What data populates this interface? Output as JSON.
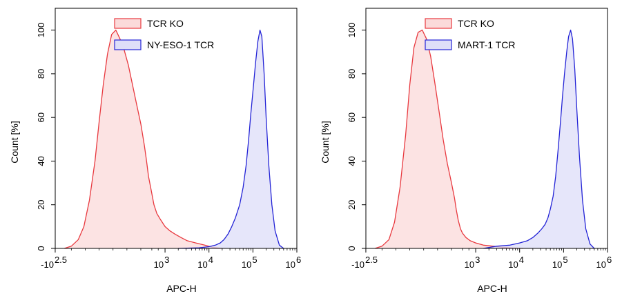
{
  "colors": {
    "ko_stroke": "#e8393f",
    "ko_fill": "#fbdada",
    "tcr_stroke": "#2323d6",
    "tcr_fill": "#dedef8",
    "axis": "#000000"
  },
  "chart_data": [
    {
      "type": "area",
      "xlabel": "APC-H",
      "ylabel": "Count [%]",
      "xscale": "biexponential (log above 10^2.5)",
      "xlim": [
        -316,
        1000000
      ],
      "ylim": [
        0,
        110
      ],
      "x_tick_labels": [
        {
          "base": "-10",
          "exp": "2.5"
        },
        {
          "base": "10",
          "exp": "3"
        },
        {
          "base": "10",
          "exp": "4"
        },
        {
          "base": "10",
          "exp": "5"
        },
        {
          "base": "10",
          "exp": "6"
        }
      ],
      "y_ticks": [
        "0",
        "20",
        "40",
        "60",
        "80",
        "100"
      ],
      "legend_position": "top-right",
      "series": [
        {
          "name": "TCR KO",
          "color": "ko",
          "x": [
            -250,
            -200,
            -150,
            -110,
            -70,
            -30,
            0,
            30,
            60,
            90,
            120,
            150,
            180,
            210,
            240,
            270,
            300,
            340,
            380,
            420,
            480,
            560,
            650,
            800,
            1000,
            1300,
            1700,
            2300,
            3200,
            5000,
            8000,
            12000,
            20000
          ],
          "values": [
            0,
            1,
            4,
            10,
            22,
            40,
            58,
            75,
            89,
            98,
            100,
            96,
            91,
            84,
            75,
            66,
            57,
            47,
            40,
            33,
            27,
            20,
            16,
            13,
            10,
            8,
            6.5,
            5,
            3.5,
            2.5,
            1.5,
            0.5,
            0
          ]
        },
        {
          "name": "NY-ESO-1 TCR",
          "color": "tcr",
          "x": [
            2000,
            6000,
            10000,
            14000,
            18000,
            22000,
            27000,
            33000,
            40000,
            50000,
            60000,
            70000,
            80000,
            90000,
            100000,
            115000,
            130000,
            145000,
            160000,
            180000,
            200000,
            230000,
            270000,
            320000,
            400000,
            500000
          ],
          "values": [
            0,
            0.3,
            0.8,
            1.5,
            2.5,
            4,
            6.5,
            10,
            14,
            20,
            28,
            38,
            50,
            62,
            72,
            85,
            95,
            100,
            97,
            80,
            60,
            38,
            20,
            8,
            1.5,
            0
          ]
        }
      ]
    },
    {
      "type": "area",
      "xlabel": "APC-H",
      "ylabel": "Count [%]",
      "xscale": "biexponential (log above 10^2.5)",
      "xlim": [
        -316,
        1000000
      ],
      "ylim": [
        0,
        110
      ],
      "x_tick_labels": [
        {
          "base": "-10",
          "exp": "2.5"
        },
        {
          "base": "10",
          "exp": "3"
        },
        {
          "base": "10",
          "exp": "4"
        },
        {
          "base": "10",
          "exp": "5"
        },
        {
          "base": "10",
          "exp": "6"
        }
      ],
      "y_ticks": [
        "0",
        "20",
        "40",
        "60",
        "80",
        "100"
      ],
      "legend_position": "top-right",
      "series": [
        {
          "name": "TCR KO",
          "color": "ko",
          "x": [
            -250,
            -200,
            -150,
            -110,
            -70,
            -30,
            0,
            30,
            60,
            90,
            120,
            150,
            180,
            210,
            240,
            270,
            300,
            330,
            360,
            400,
            450,
            500,
            600,
            750,
            1000,
            1500,
            2500,
            4000,
            7000,
            12000
          ],
          "values": [
            0,
            1,
            4,
            12,
            28,
            52,
            75,
            92,
            99,
            100,
            96,
            88,
            76,
            63,
            50,
            39,
            30,
            23,
            18,
            13,
            9,
            7,
            5,
            3.5,
            2.5,
            1.5,
            1,
            0.5,
            0.2,
            0
          ]
        },
        {
          "name": "MART-1 TCR",
          "color": "tcr",
          "x": [
            1500,
            3000,
            6000,
            10000,
            15000,
            20000,
            26000,
            32000,
            38000,
            44000,
            50000,
            58000,
            66000,
            75000,
            85000,
            95000,
            105000,
            118000,
            130000,
            145000,
            160000,
            180000,
            200000,
            230000,
            270000,
            320000,
            400000,
            500000
          ],
          "values": [
            0,
            1,
            1.5,
            2.5,
            3.5,
            5,
            7,
            9,
            11,
            14,
            18,
            24,
            33,
            45,
            58,
            70,
            80,
            90,
            97,
            100,
            96,
            82,
            64,
            42,
            22,
            9,
            2,
            0
          ]
        }
      ]
    }
  ]
}
